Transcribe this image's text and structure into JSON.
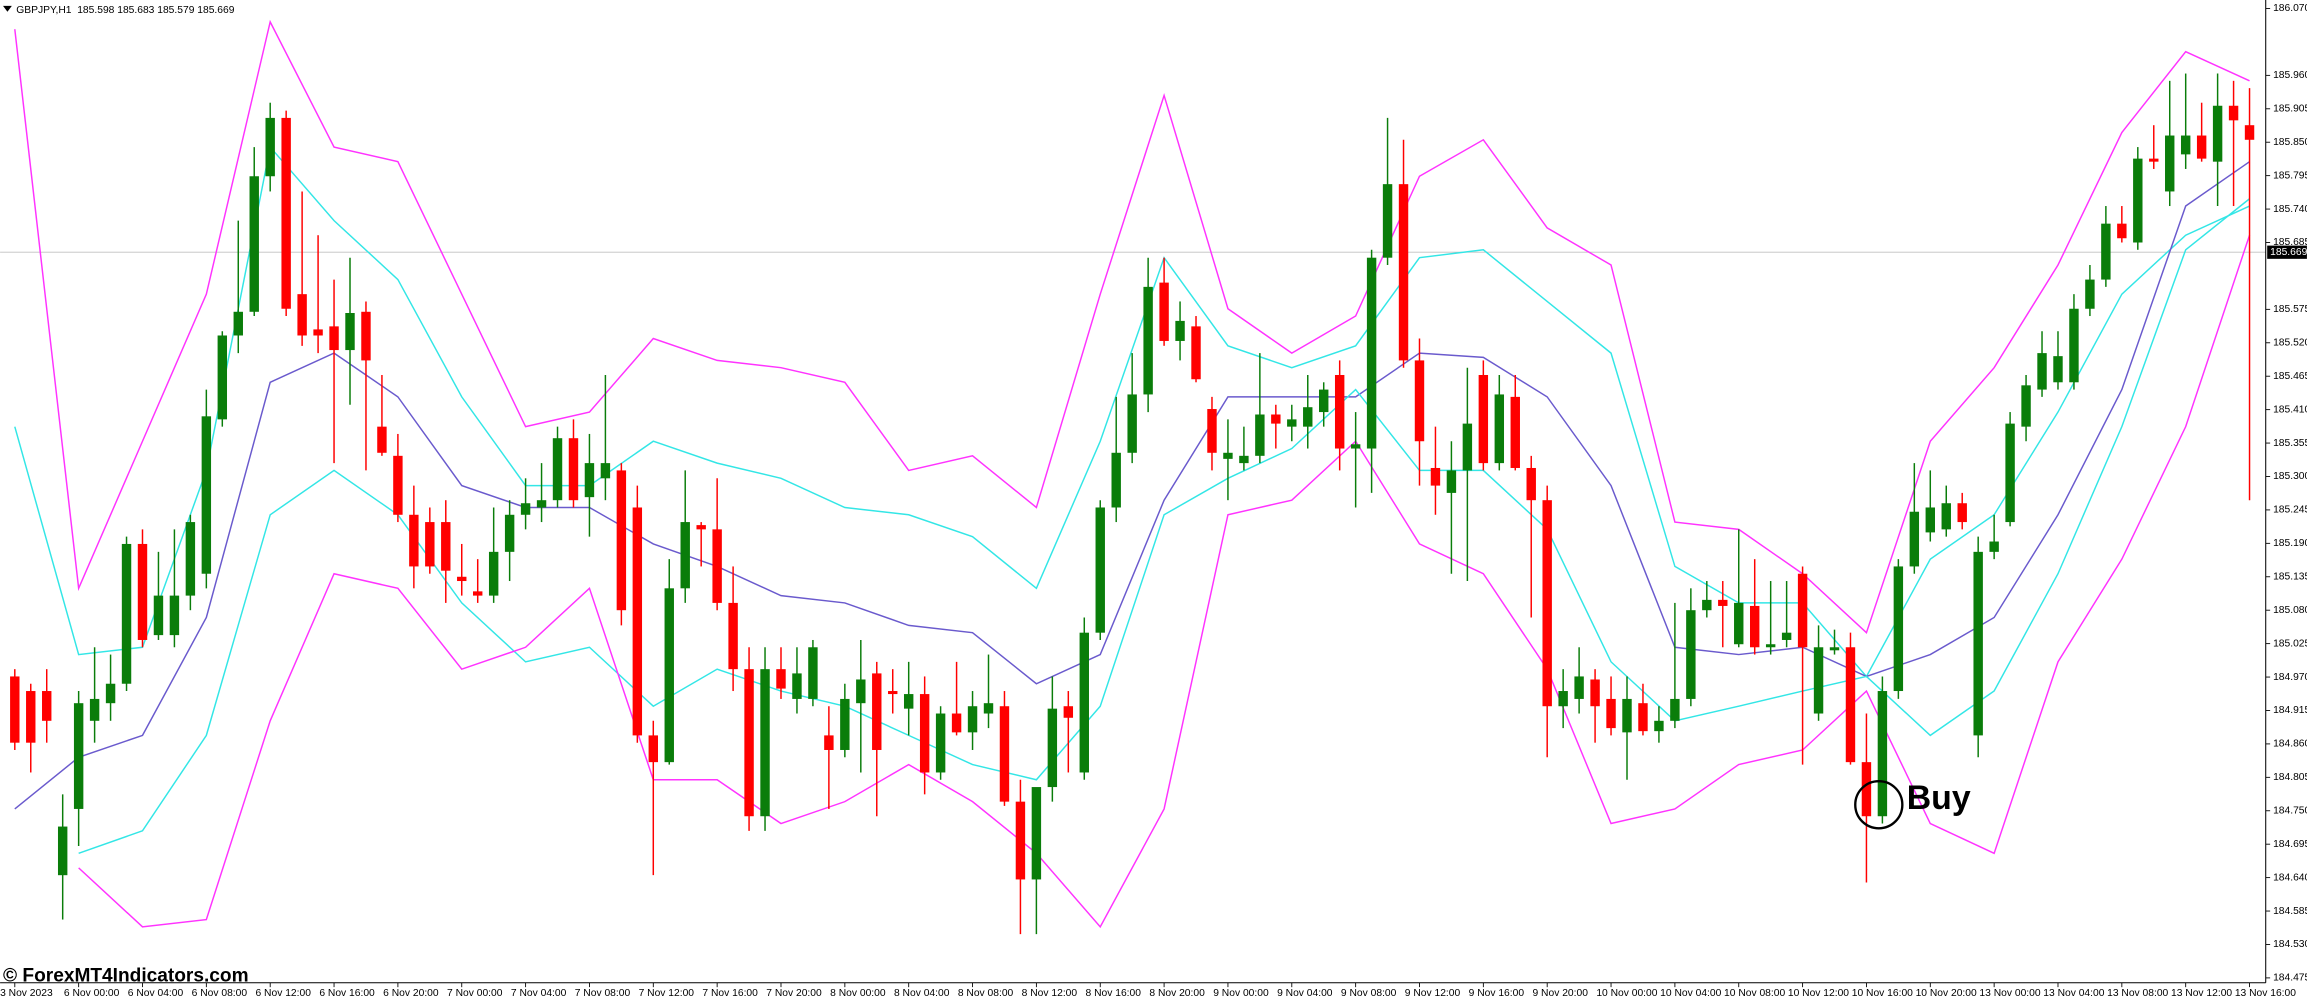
{
  "chart_data": {
    "type": "candlestick",
    "title": "GBPJPY,H1  185.598 185.683 185.579 185.669",
    "watermark": "© ForexMT4Indicators.com",
    "annotation": "Buy",
    "current_price": 185.669,
    "up_color": "#0a7d0a",
    "down_color": "#ff0000",
    "ylim": [
      184.467,
      186.084
    ],
    "yticks": [
      {
        "value": 186.07,
        "label": "186.070"
      },
      {
        "value": 185.96,
        "label": "185.960"
      },
      185.905,
      {
        "value": 185.85,
        "label": "185.850"
      },
      185.795,
      {
        "value": 185.74,
        "label": "185.740"
      },
      185.685,
      185.575,
      {
        "value": 185.52,
        "label": "185.520"
      },
      185.465,
      {
        "value": 185.41,
        "label": "185.410"
      },
      185.355,
      {
        "value": 185.3,
        "label": "185.300"
      },
      185.245,
      {
        "value": 185.19,
        "label": "185.190"
      },
      185.135,
      {
        "value": 185.08,
        "label": "185.080"
      },
      185.025,
      {
        "value": 184.97,
        "label": "184.970"
      },
      184.915,
      {
        "value": 184.86,
        "label": "184.860"
      },
      184.805,
      {
        "value": 184.75,
        "label": "184.750"
      },
      184.695,
      {
        "value": 184.64,
        "label": "184.640"
      },
      184.585,
      {
        "value": 184.53,
        "label": "184.530"
      },
      184.475
    ],
    "categories": [
      "3 Nov 2023",
      null,
      null,
      null,
      "6 Nov 00:00",
      null,
      null,
      null,
      "6 Nov 04:00",
      null,
      null,
      null,
      "6 Nov 08:00",
      null,
      null,
      null,
      "6 Nov 12:00",
      null,
      null,
      null,
      "6 Nov 16:00",
      null,
      null,
      null,
      "6 Nov 20:00",
      null,
      null,
      null,
      "7 Nov 00:00",
      null,
      null,
      null,
      "7 Nov 04:00",
      null,
      null,
      null,
      "7 Nov 08:00",
      null,
      null,
      null,
      "7 Nov 12:00",
      null,
      null,
      null,
      "7 Nov 16:00",
      null,
      null,
      null,
      "7 Nov 20:00",
      null,
      null,
      null,
      "8 Nov 00:00",
      null,
      null,
      null,
      "8 Nov 04:00",
      null,
      null,
      null,
      "8 Nov 08:00",
      null,
      null,
      null,
      "8 Nov 12:00",
      null,
      null,
      null,
      "8 Nov 16:00",
      null,
      null,
      null,
      "8 Nov 20:00",
      null,
      null,
      null,
      "9 Nov 00:00",
      null,
      null,
      null,
      "9 Nov 04:00",
      null,
      null,
      null,
      "9 Nov 08:00",
      null,
      null,
      null,
      "9 Nov 12:00",
      null,
      null,
      null,
      "9 Nov 16:00",
      null,
      null,
      null,
      "9 Nov 20:00",
      null,
      null,
      null,
      "10 Nov 00:00",
      null,
      null,
      null,
      "10 Nov 04:00",
      null,
      null,
      null,
      "10 Nov 08:00",
      null,
      null,
      null,
      "10 Nov 12:00",
      null,
      null,
      null,
      "10 Nov 16:00",
      null,
      null,
      null,
      "10 Nov 20:00",
      null,
      null,
      null,
      "13 Nov 00:00",
      null,
      null,
      null,
      "13 Nov 04:00",
      null,
      null,
      null,
      "13 Nov 08:00",
      null,
      null,
      null,
      "13 Nov 12:00",
      null,
      null,
      null,
      "13 Nov 16:00"
    ],
    "open": [
      184.971,
      184.947,
      184.947,
      184.644,
      184.753,
      184.898,
      184.927,
      184.959,
      185.189,
      185.039,
      185.039,
      185.104,
      185.14,
      185.394,
      185.532,
      185.571,
      185.794,
      185.89,
      185.6,
      185.542,
      185.547,
      185.508,
      185.571,
      185.382,
      185.334,
      185.237,
      185.225,
      185.225,
      185.135,
      185.111,
      185.104,
      185.176,
      185.237,
      185.249,
      185.261,
      185.363,
      185.266,
      185.297,
      185.31,
      185.249,
      184.874,
      184.83,
      185.116,
      185.22,
      185.213,
      185.092,
      184.983,
      184.741,
      184.983,
      184.934,
      184.934,
      184.874,
      184.85,
      184.927,
      184.976,
      184.947,
      184.918,
      184.942,
      184.813,
      184.91,
      184.879,
      184.91,
      184.922,
      184.765,
      184.637,
      184.789,
      184.922,
      184.813,
      185.043,
      185.249,
      185.339,
      185.435,
      185.619,
      185.523,
      185.547,
      185.411,
      185.329,
      185.322,
      185.334,
      185.402,
      185.382,
      185.382,
      185.406,
      185.467,
      185.346,
      185.346,
      185.66,
      185.781,
      185.491,
      185.314,
      185.273,
      185.31,
      185.467,
      185.322,
      185.431,
      185.314,
      185.261,
      184.922,
      184.934,
      184.966,
      184.934,
      184.879,
      184.927,
      184.881,
      184.898,
      184.934,
      185.08,
      185.097,
      185.024,
      185.087,
      185.019,
      185.031,
      185.14,
      184.91,
      185.014,
      185.019,
      184.83,
      184.741,
      184.947,
      185.152,
      185.208,
      185.213,
      185.256,
      184.874,
      185.176,
      185.225,
      185.382,
      185.443,
      185.455,
      185.455,
      185.576,
      185.624,
      185.716,
      185.685,
      185.823,
      185.769,
      185.83,
      185.861,
      185.818,
      185.91,
      185.878
    ],
    "high": [
      184.983,
      184.959,
      184.983,
      184.777,
      184.947,
      185.019,
      185.007,
      185.201,
      185.213,
      185.176,
      185.213,
      185.237,
      185.443,
      185.539,
      185.721,
      185.842,
      185.915,
      185.902,
      185.769,
      185.697,
      185.624,
      185.66,
      185.588,
      185.467,
      185.37,
      185.285,
      185.249,
      185.261,
      185.189,
      185.164,
      185.249,
      185.261,
      185.297,
      185.322,
      185.382,
      185.394,
      185.37,
      185.467,
      185.322,
      185.285,
      184.898,
      185.164,
      185.31,
      185.225,
      185.297,
      185.152,
      185.019,
      185.019,
      185.019,
      185.019,
      185.031,
      184.922,
      184.959,
      185.031,
      184.995,
      184.983,
      184.995,
      184.971,
      184.922,
      184.995,
      184.947,
      185.007,
      184.947,
      184.801,
      184.777,
      184.971,
      184.947,
      185.068,
      185.261,
      185.431,
      185.503,
      185.66,
      185.66,
      185.588,
      185.564,
      185.431,
      185.394,
      185.382,
      185.503,
      185.418,
      185.418,
      185.467,
      185.455,
      185.491,
      185.406,
      185.673,
      185.89,
      185.854,
      185.527,
      185.382,
      185.358,
      185.479,
      185.491,
      185.467,
      185.467,
      185.334,
      185.285,
      184.983,
      185.019,
      184.983,
      184.971,
      184.971,
      184.959,
      184.922,
      185.092,
      185.116,
      185.128,
      185.128,
      185.213,
      185.164,
      185.128,
      185.128,
      185.152,
      185.055,
      185.048,
      185.043,
      184.91,
      184.971,
      185.164,
      185.322,
      185.31,
      185.285,
      185.273,
      185.201,
      185.237,
      185.406,
      185.467,
      185.539,
      185.539,
      185.6,
      185.648,
      185.745,
      185.745,
      185.842,
      185.878,
      185.951,
      185.963,
      185.915,
      185.963,
      185.951,
      185.939
    ],
    "low": [
      184.85,
      184.813,
      184.862,
      184.571,
      184.692,
      184.862,
      184.898,
      184.947,
      185.019,
      185.031,
      185.019,
      185.08,
      185.116,
      185.382,
      185.503,
      185.564,
      185.769,
      185.564,
      185.515,
      185.503,
      185.322,
      185.418,
      185.31,
      185.334,
      185.225,
      185.116,
      185.14,
      185.092,
      185.104,
      185.092,
      185.092,
      185.128,
      185.213,
      185.225,
      185.249,
      185.249,
      185.201,
      185.261,
      185.055,
      184.862,
      184.644,
      184.826,
      185.092,
      185.152,
      185.08,
      184.947,
      184.717,
      184.717,
      184.934,
      184.91,
      184.922,
      184.753,
      184.838,
      184.813,
      184.741,
      184.91,
      184.874,
      184.777,
      184.801,
      184.874,
      184.85,
      184.886,
      184.758,
      184.547,
      184.547,
      184.765,
      184.813,
      184.801,
      185.031,
      185.225,
      185.322,
      185.406,
      185.515,
      185.491,
      185.455,
      185.31,
      185.261,
      185.31,
      185.322,
      185.346,
      185.358,
      185.346,
      185.382,
      185.31,
      185.249,
      185.273,
      185.648,
      185.479,
      185.285,
      185.237,
      185.14,
      185.128,
      185.31,
      185.31,
      185.31,
      185.068,
      184.838,
      184.886,
      184.91,
      184.862,
      184.874,
      184.801,
      184.874,
      184.862,
      184.886,
      184.922,
      185.068,
      185.019,
      185.019,
      185.007,
      185.007,
      185.019,
      184.826,
      184.898,
      185.007,
      184.826,
      184.632,
      184.729,
      184.934,
      185.14,
      185.193,
      185.201,
      185.213,
      184.838,
      185.164,
      185.218,
      185.358,
      185.431,
      185.443,
      185.443,
      185.564,
      185.612,
      185.685,
      185.673,
      185.806,
      185.745,
      185.806,
      185.818,
      185.745,
      185.745,
      185.261
    ],
    "close": [
      184.862,
      184.862,
      184.898,
      184.724,
      184.927,
      184.934,
      184.959,
      185.189,
      185.031,
      185.104,
      185.104,
      185.225,
      185.399,
      185.532,
      185.571,
      185.794,
      185.89,
      185.576,
      185.532,
      185.532,
      185.508,
      185.569,
      185.491,
      185.339,
      185.237,
      185.152,
      185.152,
      185.145,
      185.128,
      185.104,
      185.176,
      185.237,
      185.256,
      185.261,
      185.363,
      185.261,
      185.322,
      185.322,
      185.08,
      184.874,
      184.83,
      185.116,
      185.225,
      185.213,
      185.092,
      184.983,
      184.741,
      184.983,
      184.951,
      184.976,
      185.019,
      184.85,
      184.934,
      184.966,
      184.85,
      184.942,
      184.942,
      184.813,
      184.91,
      184.879,
      184.922,
      184.927,
      184.765,
      184.637,
      184.789,
      184.918,
      184.903,
      185.043,
      185.249,
      185.339,
      185.435,
      185.612,
      185.523,
      185.556,
      185.46,
      185.339,
      185.339,
      185.334,
      185.402,
      185.387,
      185.394,
      185.414,
      185.443,
      185.346,
      185.353,
      185.66,
      185.781,
      185.491,
      185.358,
      185.285,
      185.31,
      185.387,
      185.322,
      185.435,
      185.314,
      185.261,
      184.922,
      184.947,
      184.971,
      184.922,
      184.886,
      184.934,
      184.881,
      184.898,
      184.934,
      185.08,
      185.097,
      185.087,
      185.092,
      185.019,
      185.024,
      185.043,
      185.019,
      185.019,
      185.019,
      184.83,
      184.741,
      184.947,
      185.152,
      185.242,
      185.249,
      185.256,
      185.225,
      185.176,
      185.193,
      185.387,
      185.45,
      185.503,
      185.498,
      185.576,
      185.624,
      185.716,
      185.692,
      185.823,
      185.818,
      185.861,
      185.861,
      185.823,
      185.91,
      185.886,
      185.854
    ],
    "bands": {
      "x": [
        0,
        4,
        8,
        12,
        16,
        20,
        24,
        28,
        32,
        36,
        40,
        44,
        48,
        52,
        56,
        60,
        64,
        68,
        72,
        76,
        80,
        84,
        88,
        92,
        96,
        100,
        104,
        108,
        112,
        116,
        120,
        124,
        128,
        132,
        136,
        140
      ],
      "lines": [
        {
          "color": "#ff33ff",
          "values": [
            186.036,
            185.116,
            185.358,
            185.6,
            186.048,
            185.842,
            185.818,
            185.6,
            185.382,
            185.406,
            185.527,
            185.491,
            185.479,
            185.455,
            185.31,
            185.334,
            185.249,
            185.6,
            185.927,
            185.576,
            185.503,
            185.564,
            185.794,
            185.854,
            185.709,
            185.648,
            185.225,
            185.213,
            185.14,
            185.043,
            185.358,
            185.479,
            185.648,
            185.866,
            185.999,
            185.951
          ]
        },
        {
          "color": "#33e6e6",
          "values": [
            185.382,
            185.007,
            185.019,
            185.31,
            185.842,
            185.721,
            185.624,
            185.431,
            185.285,
            185.285,
            185.358,
            185.322,
            185.297,
            185.249,
            185.237,
            185.201,
            185.116,
            185.358,
            185.66,
            185.515,
            185.479,
            185.515,
            185.66,
            185.673,
            185.588,
            185.503,
            185.152,
            185.092,
            185.092,
            184.971,
            185.164,
            185.237,
            185.406,
            185.6,
            185.697,
            185.745
          ]
        },
        {
          "color": "#6a5acd",
          "values": [
            184.753,
            184.838,
            184.874,
            185.068,
            185.455,
            185.503,
            185.431,
            185.285,
            185.249,
            185.249,
            185.189,
            185.152,
            185.104,
            185.092,
            185.055,
            185.043,
            184.959,
            185.007,
            185.261,
            185.431,
            185.431,
            185.431,
            185.503,
            185.496,
            185.431,
            185.285,
            185.019,
            185.007,
            185.019,
            184.971,
            185.007,
            185.068,
            185.237,
            185.443,
            185.745,
            185.818
          ]
        },
        {
          "color": "#33e6e6",
          "values": [
            null,
            184.68,
            184.717,
            184.874,
            185.237,
            185.31,
            185.237,
            185.092,
            184.995,
            185.019,
            184.922,
            184.983,
            184.947,
            184.922,
            184.874,
            184.826,
            184.801,
            184.922,
            185.237,
            185.297,
            185.346,
            185.443,
            185.31,
            185.31,
            185.213,
            184.995,
            184.898,
            184.922,
            184.947,
            184.971,
            184.874,
            184.947,
            185.14,
            185.382,
            185.673,
            185.757
          ]
        },
        {
          "color": "#ff33ff",
          "values": [
            null,
            184.656,
            184.559,
            184.571,
            184.898,
            185.14,
            185.116,
            184.983,
            185.019,
            185.116,
            184.801,
            184.801,
            184.729,
            184.765,
            184.826,
            184.765,
            184.68,
            184.559,
            184.753,
            185.237,
            185.261,
            185.358,
            185.189,
            185.14,
            184.983,
            184.729,
            184.753,
            184.826,
            184.85,
            184.947,
            184.729,
            184.68,
            184.995,
            185.164,
            185.382,
            185.697
          ]
        }
      ]
    }
  }
}
